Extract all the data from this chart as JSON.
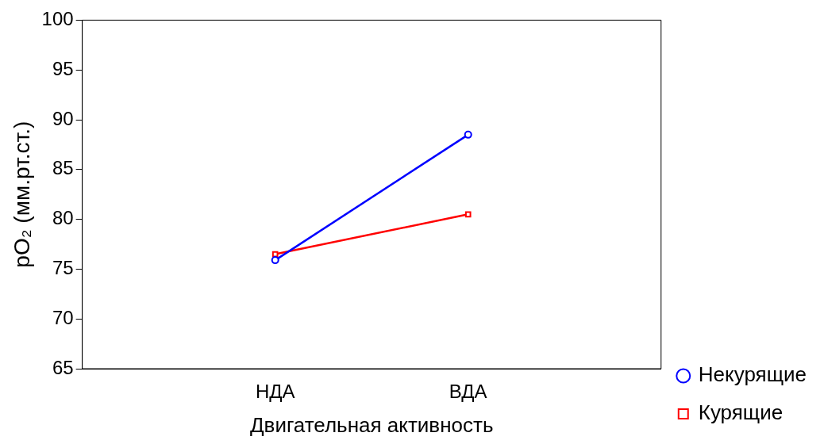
{
  "chart_data": {
    "type": "line",
    "xlabel": "Двигательная активность",
    "ylabel": "pO₂ (мм.рт.ст.)",
    "categories": [
      "НДА",
      "ВДА"
    ],
    "series": [
      {
        "name": "Некурящие",
        "color": "#0000ff",
        "values": [
          75.9,
          88.5
        ],
        "marker": "circle"
      },
      {
        "name": "Курящие",
        "color": "#ff0000",
        "values": [
          76.5,
          80.5
        ],
        "marker": "square"
      }
    ],
    "ylim": [
      65,
      100
    ],
    "yticks": [
      65,
      70,
      75,
      80,
      85,
      90,
      95,
      100
    ],
    "grid": false,
    "legend": "bottom right",
    "line_style": "solid"
  }
}
